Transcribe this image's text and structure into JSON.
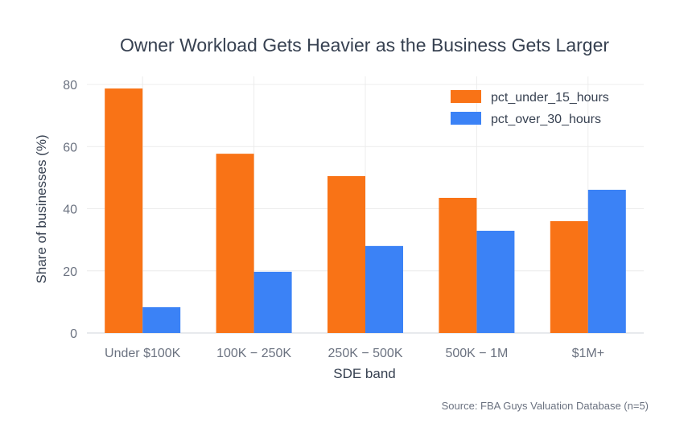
{
  "chart_data": {
    "type": "bar",
    "title": "Owner Workload Gets Heavier as the Business Gets Larger",
    "xlabel": "SDE band",
    "ylabel": "Share of businesses (%)",
    "categories": [
      "Under $100K",
      "100K − 250K",
      "250K − 500K",
      "500K − 1M",
      "$1M+"
    ],
    "series": [
      {
        "name": "pct_under_15_hours",
        "color": "#f97316",
        "values": [
          78.7,
          57.7,
          50.5,
          43.5,
          36.0
        ]
      },
      {
        "name": "pct_over_30_hours",
        "color": "#3b82f6",
        "values": [
          8.3,
          19.7,
          28.0,
          32.9,
          46.1
        ]
      }
    ],
    "ylim": [
      0,
      80
    ],
    "yticks": [
      0,
      20,
      40,
      60,
      80
    ],
    "grid": true,
    "legend_position": "top-right",
    "source": "Source: FBA Guys Valuation Database (n=5)"
  }
}
